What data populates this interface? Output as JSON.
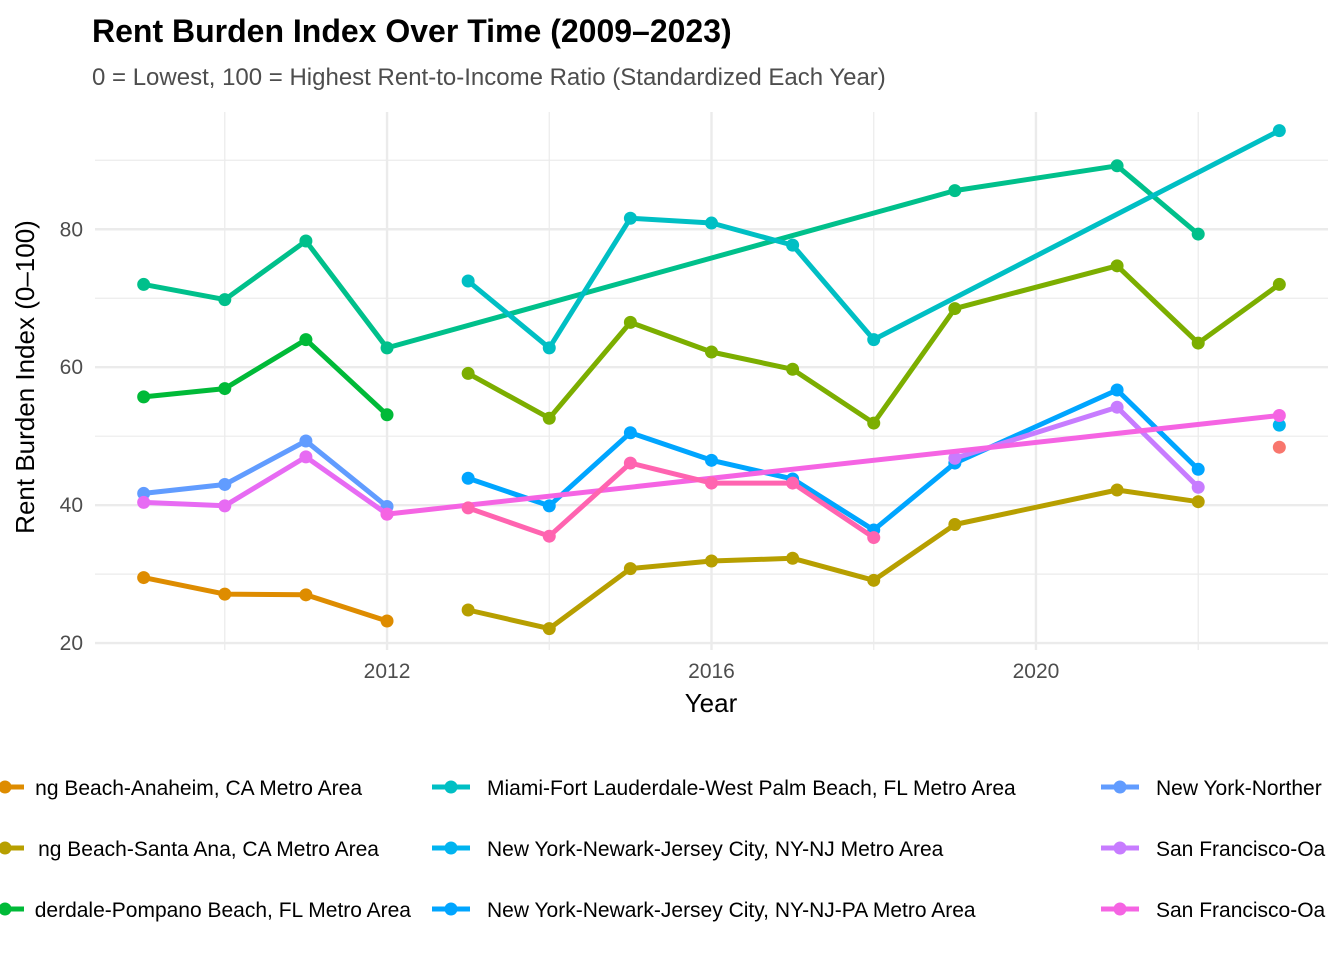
{
  "chart_data": {
    "type": "line",
    "title": "Rent Burden Index Over Time (2009–2023)",
    "subtitle": "0 = Lowest, 100 = Highest Rent-to-Income Ratio (Standardized Each Year)",
    "xlabel": "Year",
    "ylabel": "Rent Burden Index (0–100)",
    "xlim": [
      2008.4,
      2023.6
    ],
    "ylim": [
      19,
      97
    ],
    "x_ticks": [
      2012,
      2016,
      2020
    ],
    "y_ticks": [
      20,
      40,
      60,
      80
    ],
    "grid": true,
    "legend_position": "bottom",
    "series": [
      {
        "name": "",
        "color": "#F8766D",
        "legend": false,
        "x": [
          2023
        ],
        "y": [
          48.4
        ]
      },
      {
        "name": "…ng Beach-Anaheim, CA Metro Area",
        "color": "#DE8C00",
        "x": [
          2009,
          2010,
          2011,
          2012
        ],
        "y": [
          29.5,
          27.1,
          27.0,
          23.2
        ]
      },
      {
        "name": "…ng Beach-Santa Ana, CA Metro Area",
        "color": "#B79F00",
        "x": [
          2013,
          2014,
          2015,
          2016,
          2017,
          2018,
          2019,
          2021,
          2022
        ],
        "y": [
          24.8,
          22.1,
          30.8,
          31.9,
          32.3,
          29.1,
          37.2,
          42.2,
          40.5
        ]
      },
      {
        "name": "",
        "color": "#7CAE00",
        "legend": false,
        "x": [
          2013,
          2014,
          2015,
          2016,
          2017,
          2018,
          2019,
          2021,
          2022,
          2023
        ],
        "y": [
          59.1,
          52.6,
          66.5,
          62.2,
          59.7,
          51.9,
          68.5,
          74.7,
          63.5,
          72.0
        ]
      },
      {
        "name": "…derdale-Pompano Beach, FL Metro Area",
        "color": "#00BA38",
        "x": [
          2009,
          2010,
          2011,
          2012
        ],
        "y": [
          55.7,
          56.9,
          64.0,
          53.1
        ]
      },
      {
        "name": "",
        "color": "#00C08B",
        "legend": false,
        "x": [
          2009,
          2010,
          2011,
          2012,
          2019,
          2021,
          2022
        ],
        "y": [
          72.0,
          69.8,
          78.3,
          62.8,
          85.6,
          89.2,
          79.3
        ]
      },
      {
        "name": "Miami-Fort Lauderdale-West Palm Beach, FL Metro Area",
        "color": "#00BFC4",
        "x": [
          2013,
          2014,
          2015,
          2016,
          2017,
          2018,
          2023
        ],
        "y": [
          72.5,
          62.8,
          81.6,
          80.9,
          77.7,
          64.0,
          94.3
        ]
      },
      {
        "name": "New York-Newark-Jersey City, NY-NJ Metro Area",
        "color": "#00B4F0",
        "x": [
          2023
        ],
        "y": [
          51.6
        ]
      },
      {
        "name": "New York-Newark-Jersey City, NY-NJ-PA Metro Area",
        "color": "#00A5FF",
        "x": [
          2013,
          2014,
          2015,
          2016,
          2017,
          2018,
          2019,
          2021,
          2022
        ],
        "y": [
          43.9,
          39.9,
          50.5,
          46.5,
          43.8,
          36.4,
          46.1,
          56.7,
          45.2
        ]
      },
      {
        "name": "New York-Norther…",
        "color": "#619CFF",
        "x": [
          2009,
          2010,
          2011,
          2012
        ],
        "y": [
          41.7,
          43.0,
          49.3,
          39.8
        ]
      },
      {
        "name": "San Francisco-Oa…",
        "color": "#C77CFF",
        "x": [
          2019,
          2021,
          2022
        ],
        "y": [
          46.8,
          54.2,
          42.6
        ]
      },
      {
        "name": "",
        "color": "#E76BF3",
        "legend": false,
        "x": [
          2009,
          2010,
          2011,
          2012
        ],
        "y": [
          40.4,
          39.9,
          47.0,
          38.7
        ]
      },
      {
        "name": "San Francisco-Oa…",
        "color": "#F564E3",
        "x": [
          2012,
          2023
        ],
        "y": [
          38.7,
          53.0
        ]
      },
      {
        "name": "",
        "color": "#FF64B0",
        "legend": false,
        "x": [
          2013,
          2014,
          2015,
          2016,
          2017,
          2018
        ],
        "y": [
          39.6,
          35.5,
          46.1,
          43.2,
          43.2,
          35.3
        ]
      }
    ]
  }
}
